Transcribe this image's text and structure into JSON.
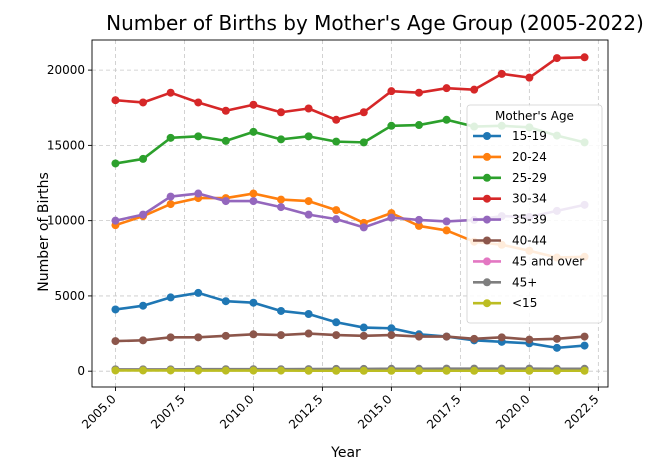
{
  "chart_data": {
    "type": "line",
    "title": "Number of Births by Mother's Age Group (2005-2022)",
    "xlabel": "Year",
    "ylabel": "Number of Births",
    "xlim": [
      2004.15,
      2022.85
    ],
    "ylim": [
      -1050,
      22000
    ],
    "x_ticks": [
      2005.0,
      2007.5,
      2010.0,
      2012.5,
      2015.0,
      2017.5,
      2020.0,
      2022.5
    ],
    "x_tick_labels": [
      "2005.0",
      "2007.5",
      "2010.0",
      "2012.5",
      "2015.0",
      "2017.5",
      "2020.0",
      "2022.5"
    ],
    "y_ticks": [
      0,
      5000,
      10000,
      15000,
      20000
    ],
    "y_tick_labels": [
      "0",
      "5000",
      "10000",
      "15000",
      "20000"
    ],
    "grid": true,
    "legend": {
      "title": "Mother's Age",
      "position": "right"
    },
    "x": [
      2005,
      2006,
      2007,
      2008,
      2009,
      2010,
      2011,
      2012,
      2013,
      2014,
      2015,
      2016,
      2017,
      2018,
      2019,
      2020,
      2021,
      2022
    ],
    "series": [
      {
        "name": "15-19",
        "color": "#1f77b4",
        "values": [
          4100,
          4350,
          4900,
          5200,
          4650,
          4550,
          4000,
          3800,
          3250,
          2900,
          2850,
          2450,
          2300,
          2050,
          1950,
          1850,
          1550,
          1700
        ]
      },
      {
        "name": "20-24",
        "color": "#ff7f0e",
        "values": [
          9700,
          10300,
          11100,
          11500,
          11500,
          11800,
          11400,
          11300,
          10700,
          9850,
          10500,
          9650,
          9350,
          8600,
          8400,
          8000,
          7550,
          7600
        ]
      },
      {
        "name": "25-29",
        "color": "#2ca02c",
        "values": [
          13800,
          14100,
          15500,
          15600,
          15300,
          15900,
          15400,
          15600,
          15250,
          15200,
          16300,
          16350,
          16700,
          16250,
          16300,
          16200,
          15650,
          15200
        ]
      },
      {
        "name": "30-34",
        "color": "#d62728",
        "values": [
          18000,
          17850,
          18500,
          17850,
          17300,
          17700,
          17200,
          17450,
          16700,
          17200,
          18600,
          18500,
          18800,
          18700,
          19750,
          19500,
          20800,
          20850
        ]
      },
      {
        "name": "35-39",
        "color": "#9467bd",
        "values": [
          10000,
          10400,
          11600,
          11800,
          11300,
          11300,
          10900,
          10400,
          10100,
          9550,
          10200,
          10050,
          9950,
          10050,
          10300,
          10250,
          10650,
          11050
        ]
      },
      {
        "name": "40-44",
        "color": "#8c564b",
        "values": [
          2000,
          2050,
          2250,
          2250,
          2350,
          2450,
          2400,
          2500,
          2400,
          2350,
          2400,
          2300,
          2300,
          2150,
          2250,
          2100,
          2150,
          2300
        ]
      },
      {
        "name": "45 and over",
        "color": "#e377c2",
        "values": [
          100,
          100,
          100,
          100,
          100,
          100,
          100,
          100,
          100,
          100,
          100,
          100,
          100,
          100,
          100,
          100,
          100,
          100
        ]
      },
      {
        "name": "45+",
        "color": "#7f7f7f",
        "values": [
          120,
          120,
          120,
          130,
          130,
          130,
          130,
          140,
          150,
          150,
          160,
          160,
          170,
          170,
          170,
          170,
          160,
          160
        ]
      },
      {
        "name": "<15",
        "color": "#bcbd22",
        "values": [
          50,
          50,
          50,
          40,
          40,
          40,
          40,
          30,
          30,
          30,
          30,
          30,
          30,
          30,
          30,
          30,
          30,
          30
        ]
      }
    ]
  }
}
